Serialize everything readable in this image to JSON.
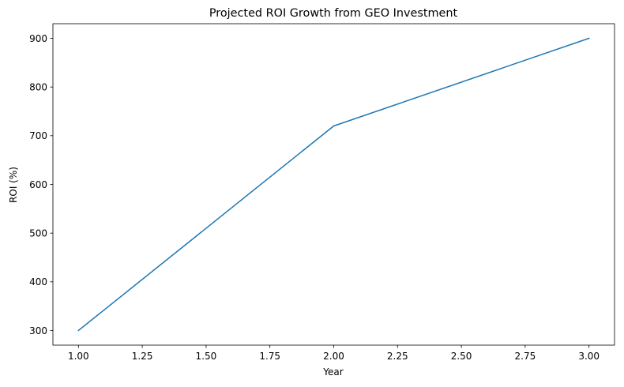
{
  "chart_data": {
    "type": "line",
    "title": "Projected ROI Growth from GEO Investment",
    "xlabel": "Year",
    "ylabel": "ROI (%)",
    "x": [
      1,
      2,
      3
    ],
    "series": [
      {
        "name": "ROI",
        "values": [
          300,
          720,
          900
        ],
        "color": "#1f77b4"
      }
    ],
    "xlim": [
      0.9,
      3.1
    ],
    "ylim": [
      270,
      930
    ],
    "xticks": [
      1.0,
      1.25,
      1.5,
      1.75,
      2.0,
      2.25,
      2.5,
      2.75,
      3.0
    ],
    "xtick_labels": [
      "1.00",
      "1.25",
      "1.50",
      "1.75",
      "2.00",
      "2.25",
      "2.50",
      "2.75",
      "3.00"
    ],
    "yticks": [
      300,
      400,
      500,
      600,
      700,
      800,
      900
    ],
    "ytick_labels": [
      "300",
      "400",
      "500",
      "600",
      "700",
      "800",
      "900"
    ],
    "grid": false,
    "legend": null
  }
}
